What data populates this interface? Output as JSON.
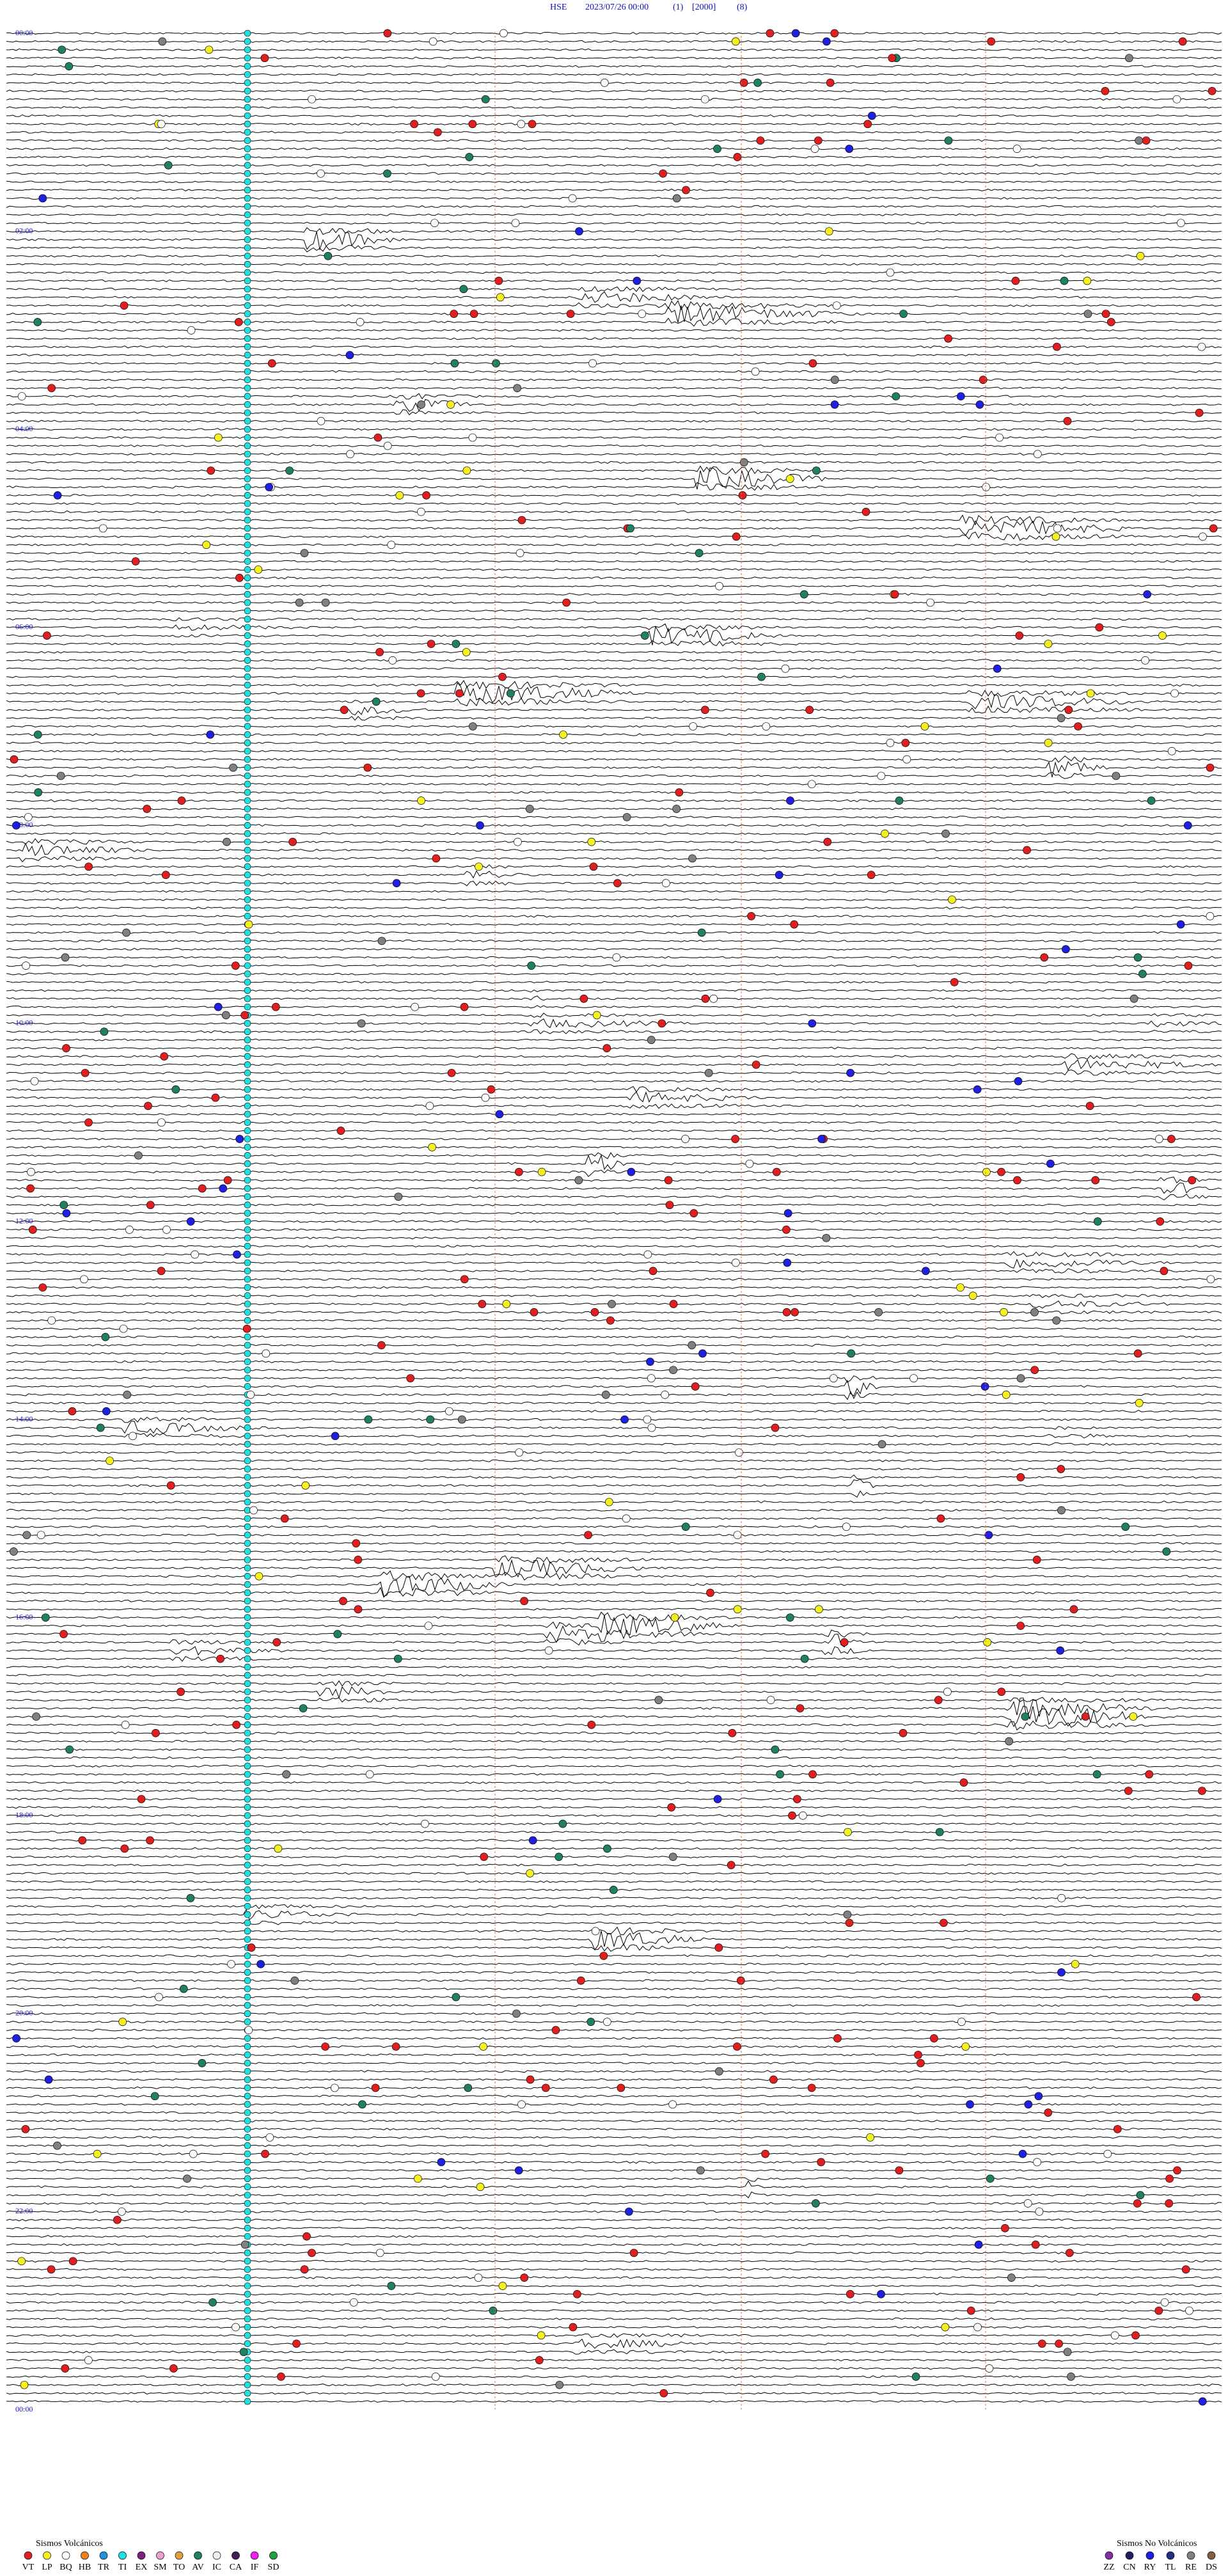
{
  "header": {
    "station": "HSE",
    "datetime": "2023/07/26 00:00",
    "fields": [
      "(1)",
      "[2000]",
      "(8)"
    ]
  },
  "hour_labels": [
    "00:00",
    "02:00",
    "04:00",
    "06:00",
    "08:00",
    "10:00",
    "12:00",
    "14:00",
    "16:00",
    "18:00",
    "20:00",
    "22:00",
    "00:00"
  ],
  "legend": {
    "volcanic": {
      "title": "Sismos Volcánicos",
      "items": [
        {
          "code": "VT",
          "color": "#e02020"
        },
        {
          "code": "LP",
          "color": "#f5f020"
        },
        {
          "code": "BQ",
          "color": "#ffffff"
        },
        {
          "code": "HB",
          "color": "#f08020"
        },
        {
          "code": "TR",
          "color": "#2090e0"
        },
        {
          "code": "TI",
          "color": "#20e0e0"
        },
        {
          "code": "EX",
          "color": "#802080"
        },
        {
          "code": "SM",
          "color": "#f0a0d0"
        },
        {
          "code": "TO",
          "color": "#e0a040"
        },
        {
          "code": "AV",
          "color": "#208060"
        },
        {
          "code": "IC",
          "color": "#f0f0f0"
        },
        {
          "code": "CA",
          "color": "#402050"
        },
        {
          "code": "IF",
          "color": "#f020f0"
        },
        {
          "code": "SD",
          "color": "#20a040"
        }
      ]
    },
    "non_volcanic": {
      "title": "Sismos No Volcánicos",
      "items": [
        {
          "code": "ZZ",
          "color": "#8030a0"
        },
        {
          "code": "CN",
          "color": "#202060"
        },
        {
          "code": "RY",
          "color": "#2020e0"
        },
        {
          "code": "TL",
          "color": "#203080"
        },
        {
          "code": "RE",
          "color": "#808080"
        },
        {
          "code": "DS",
          "color": "#806040"
        }
      ]
    }
  }
}
